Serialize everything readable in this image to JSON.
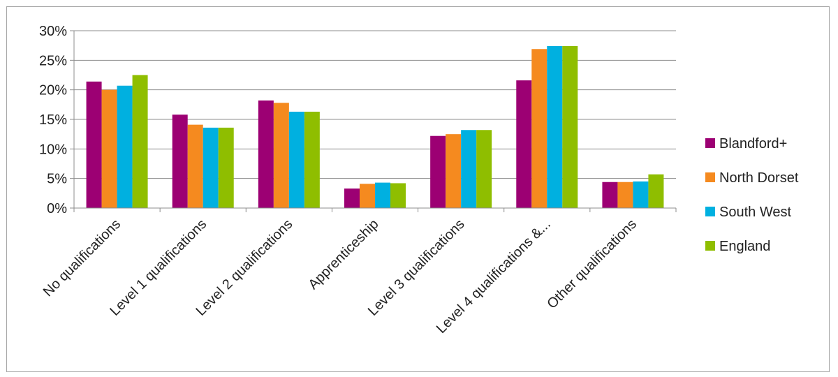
{
  "chart_data": {
    "type": "bar",
    "title": "",
    "xlabel": "",
    "ylabel": "",
    "ylim": [
      0,
      0.3
    ],
    "y_ticks": [
      "0%",
      "5%",
      "10%",
      "15%",
      "20%",
      "25%",
      "30%"
    ],
    "y_tick_values": [
      0,
      0.05,
      0.1,
      0.15,
      0.2,
      0.25,
      0.3
    ],
    "grid": true,
    "legend_position": "right",
    "categories": [
      "No qualifications",
      "Level 1 qualifications",
      "Level 2 qualifications",
      "Apprenticeship",
      "Level 3 qualifications",
      "Level 4 qualifications &...",
      "Other qualifications"
    ],
    "series": [
      {
        "name": "Blandford+",
        "color": "#9c0073",
        "values": [
          0.214,
          0.158,
          0.182,
          0.033,
          0.122,
          0.216,
          0.044
        ]
      },
      {
        "name": "North Dorset",
        "color": "#f58a1f",
        "values": [
          0.2,
          0.141,
          0.178,
          0.041,
          0.125,
          0.269,
          0.044
        ]
      },
      {
        "name": "South West",
        "color": "#00b0e0",
        "values": [
          0.207,
          0.136,
          0.163,
          0.043,
          0.132,
          0.274,
          0.045
        ]
      },
      {
        "name": "England",
        "color": "#8fbe00",
        "values": [
          0.225,
          0.136,
          0.163,
          0.042,
          0.132,
          0.274,
          0.057
        ]
      }
    ]
  }
}
